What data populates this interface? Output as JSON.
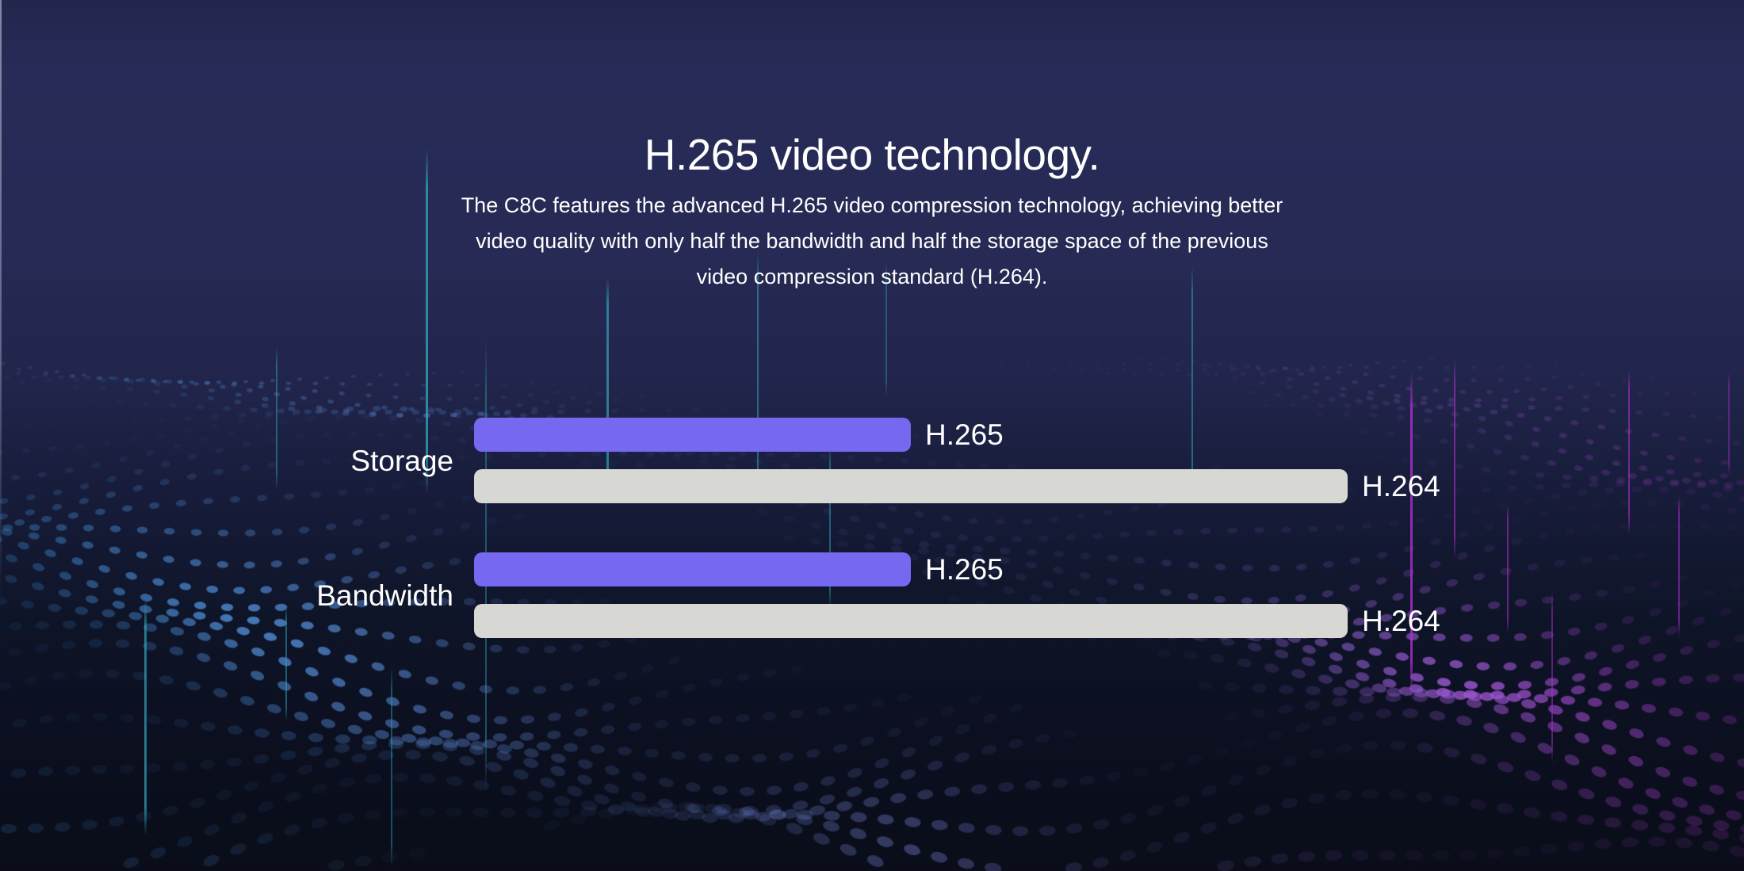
{
  "hero": {
    "title": "H.265 video technology.",
    "description_lines": [
      "The C8C features the advanced H.265 video compression technology, achieving better",
      "video quality with only half the bandwidth and half the storage space of the previous",
      "video compression standard (H.264)."
    ]
  },
  "chart_data": {
    "type": "bar",
    "orientation": "horizontal",
    "title": "",
    "categories": [
      "Storage",
      "Bandwidth"
    ],
    "series": [
      {
        "name": "H.265",
        "values": [
          50,
          50
        ]
      },
      {
        "name": "H.264",
        "values": [
          100,
          100
        ]
      }
    ],
    "xlim": [
      0,
      100
    ],
    "axes_shown": false,
    "grid": false,
    "legend": "series name labeled in white at the end of each bar"
  },
  "colors": {
    "bar_h265": "#7668f0",
    "bar_h264": "#d7d7d4",
    "text": "#ffffff",
    "bg_top": "#272b57",
    "bg_bottom": "#0a0d19",
    "dot_blue": "#3f8cd0",
    "dot_periwinkle": "#8090e6",
    "dot_magenta": "#a83cc6",
    "line_teal": "#2fa3b8",
    "line_magenta": "#b02fd0"
  }
}
